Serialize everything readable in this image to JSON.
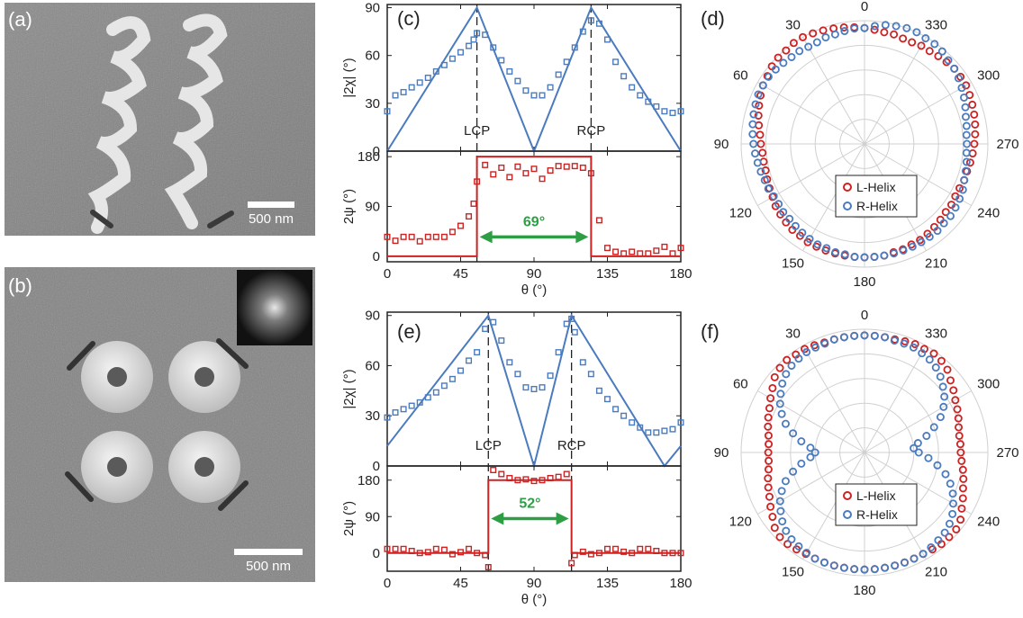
{
  "panels": {
    "a": {
      "label": "(a)",
      "scalebar": "500 nm"
    },
    "b": {
      "label": "(b)",
      "scalebar": "500 nm"
    },
    "c": {
      "label": "(c)"
    },
    "d": {
      "label": "(d)"
    },
    "e": {
      "label": "(e)"
    },
    "f": {
      "label": "(f)"
    }
  },
  "colors": {
    "blue": "#4a7bbf",
    "red": "#cc2222",
    "green": "#2e9e44",
    "grid": "#d0d0d0"
  },
  "chart_data": [
    {
      "id": "c-top",
      "type": "line",
      "xlabel": "",
      "ylabel": "|2χ| (°)",
      "xlim": [
        0,
        180
      ],
      "ylim": [
        0,
        92
      ],
      "xticks": [
        0,
        45,
        90,
        135,
        180
      ],
      "yticks": [
        0,
        30,
        60,
        90
      ],
      "yticklabels": [
        "0",
        "30",
        "60",
        "90"
      ],
      "markers": [
        {
          "x": 55,
          "label": "LCP"
        },
        {
          "x": 125,
          "label": "RCP"
        }
      ],
      "series": [
        {
          "style": "line",
          "color": "#4a7bbf",
          "x": [
            0,
            55,
            90,
            125,
            180
          ],
          "y": [
            0,
            90,
            0,
            90,
            0
          ]
        },
        {
          "style": "square",
          "color": "#4a7bbf",
          "x": [
            0,
            5,
            10,
            15,
            20,
            25,
            30,
            35,
            40,
            45,
            50,
            53,
            55,
            60,
            65,
            70,
            75,
            80,
            85,
            90,
            95,
            100,
            105,
            110,
            115,
            120,
            125,
            130,
            135,
            140,
            145,
            150,
            155,
            160,
            165,
            170,
            175,
            180
          ],
          "y": [
            25,
            35,
            37,
            40,
            43,
            46,
            50,
            54,
            58,
            62,
            66,
            70,
            74,
            73,
            65,
            57,
            50,
            44,
            38,
            35,
            35,
            40,
            48,
            56,
            65,
            75,
            82,
            80,
            70,
            56,
            47,
            40,
            35,
            31,
            28,
            25,
            24,
            25
          ]
        }
      ]
    },
    {
      "id": "c-bottom",
      "type": "line",
      "xlabel": "θ (°)",
      "ylabel": "2ψ (°)",
      "xlim": [
        0,
        180
      ],
      "ylim": [
        -10,
        190
      ],
      "xticks": [
        0,
        45,
        90,
        135,
        180
      ],
      "yticks": [
        0,
        90,
        180
      ],
      "xticklabels": [
        "0",
        "45",
        "90",
        "135",
        "180"
      ],
      "yticklabels": [
        "0",
        "90",
        "180"
      ],
      "annotation": {
        "text": "69°",
        "x1": 55,
        "x2": 125,
        "y": 35
      },
      "series": [
        {
          "style": "step",
          "color": "#cc2222",
          "x": [
            0,
            55,
            55,
            125,
            125,
            180
          ],
          "y": [
            0,
            0,
            180,
            180,
            0,
            0
          ]
        },
        {
          "style": "square",
          "color": "#cc2222",
          "x": [
            0,
            5,
            10,
            15,
            20,
            25,
            30,
            35,
            40,
            45,
            50,
            53,
            55,
            60,
            65,
            70,
            75,
            80,
            85,
            90,
            95,
            100,
            105,
            110,
            115,
            120,
            125,
            130,
            135,
            140,
            145,
            150,
            155,
            160,
            165,
            170,
            175,
            180
          ],
          "y": [
            35,
            28,
            35,
            35,
            27,
            35,
            35,
            35,
            44,
            55,
            72,
            95,
            135,
            165,
            148,
            160,
            143,
            162,
            150,
            158,
            140,
            155,
            163,
            162,
            163,
            160,
            150,
            65,
            15,
            8,
            5,
            8,
            5,
            5,
            10,
            17,
            5,
            15
          ]
        }
      ]
    },
    {
      "id": "e-top",
      "type": "line",
      "xlabel": "",
      "ylabel": "|2χ| (°)",
      "xlim": [
        0,
        180
      ],
      "ylim": [
        0,
        92
      ],
      "xticks": [
        0,
        45,
        90,
        135,
        180
      ],
      "yticks": [
        0,
        30,
        60,
        90
      ],
      "yticklabels": [
        "0",
        "30",
        "60",
        "90"
      ],
      "markers": [
        {
          "x": 62,
          "label": "LCP"
        },
        {
          "x": 113,
          "label": "RCP"
        }
      ],
      "series": [
        {
          "style": "line",
          "color": "#4a7bbf",
          "x": [
            0,
            62,
            90,
            113,
            170,
            180
          ],
          "y": [
            12,
            90,
            0,
            90,
            0,
            12
          ]
        },
        {
          "style": "square",
          "color": "#4a7bbf",
          "x": [
            0,
            5,
            10,
            15,
            20,
            25,
            30,
            35,
            40,
            45,
            50,
            55,
            60,
            65,
            70,
            75,
            80,
            85,
            90,
            95,
            100,
            105,
            110,
            113,
            115,
            120,
            125,
            130,
            135,
            140,
            145,
            150,
            155,
            160,
            165,
            170,
            175,
            180
          ],
          "y": [
            29,
            32,
            34,
            36,
            38,
            41,
            44,
            48,
            52,
            57,
            63,
            68,
            82,
            86,
            75,
            62,
            55,
            47,
            46,
            47,
            54,
            68,
            85,
            88,
            80,
            62,
            55,
            45,
            40,
            34,
            30,
            26,
            23,
            20,
            20,
            21,
            22,
            26
          ]
        }
      ]
    },
    {
      "id": "e-bottom",
      "type": "line",
      "xlabel": "θ (°)",
      "ylabel": "2ψ (°)",
      "xlim": [
        0,
        180
      ],
      "ylim": [
        -45,
        215
      ],
      "xticks": [
        0,
        45,
        90,
        135,
        180
      ],
      "yticks": [
        0,
        90,
        180
      ],
      "xticklabels": [
        "0",
        "45",
        "90",
        "135",
        "180"
      ],
      "yticklabels": [
        "0",
        "90",
        "180"
      ],
      "annotation": {
        "text": "52°",
        "x1": 62,
        "x2": 113,
        "y": 85
      },
      "series": [
        {
          "style": "step",
          "color": "#cc2222",
          "x": [
            0,
            62,
            62,
            113,
            113,
            180
          ],
          "y": [
            0,
            0,
            180,
            180,
            0,
            0
          ]
        },
        {
          "style": "square",
          "color": "#cc2222",
          "x": [
            0,
            5,
            10,
            15,
            20,
            25,
            30,
            35,
            40,
            45,
            50,
            55,
            60,
            62,
            65,
            70,
            75,
            80,
            85,
            90,
            95,
            100,
            105,
            110,
            113,
            115,
            120,
            125,
            130,
            135,
            140,
            145,
            150,
            155,
            160,
            165,
            170,
            175,
            180
          ],
          "y": [
            10,
            10,
            10,
            5,
            0,
            2,
            10,
            8,
            -3,
            2,
            10,
            0,
            -5,
            -35,
            205,
            195,
            185,
            180,
            182,
            178,
            180,
            185,
            188,
            195,
            -25,
            -5,
            3,
            -3,
            0,
            10,
            10,
            3,
            0,
            10,
            10,
            5,
            0,
            0,
            0
          ]
        }
      ]
    },
    {
      "id": "d",
      "type": "polar",
      "angle_labels": [
        {
          "deg": 0,
          "text": "0"
        },
        {
          "deg": 30,
          "text": "30"
        },
        {
          "deg": 60,
          "text": "60"
        },
        {
          "deg": 90,
          "text": "90"
        },
        {
          "deg": 120,
          "text": "120"
        },
        {
          "deg": 150,
          "text": "150"
        },
        {
          "deg": 180,
          "text": "180"
        },
        {
          "deg": 210,
          "text": "210"
        },
        {
          "deg": 240,
          "text": "240"
        },
        {
          "deg": 270,
          "text": "270"
        },
        {
          "deg": 300,
          "text": "300"
        },
        {
          "deg": 330,
          "text": "330"
        }
      ],
      "angle_step": 5,
      "series": [
        {
          "name": "L-Helix",
          "color": "#cc2222",
          "r": [
            0.94,
            0.95,
            0.96,
            0.97,
            0.98,
            0.99,
            1.0,
            1.0,
            0.99,
            0.99,
            0.98,
            0.96,
            0.95,
            0.93,
            0.91,
            0.89,
            0.87,
            0.85,
            0.84,
            0.83,
            0.83,
            0.83,
            0.84,
            0.85,
            0.86,
            0.88,
            0.89,
            0.9,
            0.91,
            0.91,
            0.92,
            0.92,
            0.92,
            0.92,
            0.92,
            0.92,
            0.92,
            0.92,
            0.92,
            0.91,
            0.91,
            0.9,
            0.9,
            0.89,
            0.88,
            0.87,
            0.86,
            0.86,
            0.85,
            0.85,
            0.86,
            0.86,
            0.87,
            0.88,
            0.89,
            0.9,
            0.91,
            0.92,
            0.93,
            0.94,
            0.95,
            0.95,
            0.95,
            0.94,
            0.93,
            0.92,
            0.92,
            0.91,
            0.91,
            0.92,
            0.92,
            0.93
          ]
        },
        {
          "name": "R-Helix",
          "color": "#4a7bbf",
          "r": [
            0.94,
            0.94,
            0.93,
            0.92,
            0.92,
            0.91,
            0.91,
            0.92,
            0.92,
            0.93,
            0.94,
            0.95,
            0.95,
            0.95,
            0.94,
            0.93,
            0.92,
            0.91,
            0.9,
            0.89,
            0.88,
            0.87,
            0.86,
            0.86,
            0.85,
            0.85,
            0.86,
            0.86,
            0.87,
            0.88,
            0.89,
            0.9,
            0.9,
            0.91,
            0.91,
            0.92,
            0.92,
            0.92,
            0.92,
            0.92,
            0.92,
            0.92,
            0.92,
            0.92,
            0.92,
            0.91,
            0.91,
            0.9,
            0.89,
            0.88,
            0.86,
            0.85,
            0.84,
            0.83,
            0.83,
            0.83,
            0.84,
            0.85,
            0.87,
            0.89,
            0.91,
            0.93,
            0.95,
            0.96,
            0.98,
            0.99,
            0.99,
            1.0,
            1.0,
            0.99,
            0.98,
            0.96
          ]
        }
      ],
      "legend": [
        "L-Helix",
        "R-Helix"
      ]
    },
    {
      "id": "f",
      "type": "polar",
      "angle_labels": [
        {
          "deg": 0,
          "text": "0"
        },
        {
          "deg": 30,
          "text": "30"
        },
        {
          "deg": 60,
          "text": "60"
        },
        {
          "deg": 90,
          "text": "90"
        },
        {
          "deg": 120,
          "text": "120"
        },
        {
          "deg": 150,
          "text": "150"
        },
        {
          "deg": 180,
          "text": "180"
        },
        {
          "deg": 210,
          "text": "210"
        },
        {
          "deg": 240,
          "text": "240"
        },
        {
          "deg": 270,
          "text": "270"
        },
        {
          "deg": 300,
          "text": "300"
        },
        {
          "deg": 330,
          "text": "330"
        }
      ],
      "angle_step": 5,
      "series": [
        {
          "name": "L-Helix",
          "color": "#cc2222",
          "r": [
            0.95,
            0.95,
            0.95,
            0.95,
            0.95,
            0.96,
            0.97,
            0.97,
            0.98,
            0.97,
            0.95,
            0.91,
            0.88,
            0.85,
            0.83,
            0.81,
            0.79,
            0.78,
            0.78,
            0.78,
            0.79,
            0.81,
            0.83,
            0.85,
            0.88,
            0.91,
            0.95,
            0.97,
            0.97,
            0.96,
            0.95,
            0.95,
            0.95,
            0.95,
            0.95,
            0.95,
            0.95,
            0.95,
            0.95,
            0.95,
            0.95,
            0.95,
            0.95,
            0.96,
            0.97,
            0.97,
            0.97,
            0.95,
            0.91,
            0.88,
            0.85,
            0.83,
            0.81,
            0.79,
            0.78,
            0.78,
            0.78,
            0.79,
            0.81,
            0.83,
            0.85,
            0.88,
            0.91,
            0.95,
            0.97,
            0.98,
            0.97,
            0.97,
            0.96,
            0.95,
            0.95,
            0.95
          ]
        },
        {
          "name": "R-Helix",
          "color": "#4a7bbf",
          "r": [
            0.95,
            0.95,
            0.95,
            0.95,
            0.94,
            0.94,
            0.94,
            0.93,
            0.92,
            0.9,
            0.87,
            0.83,
            0.79,
            0.74,
            0.68,
            0.6,
            0.52,
            0.44,
            0.4,
            0.44,
            0.52,
            0.6,
            0.68,
            0.74,
            0.79,
            0.83,
            0.87,
            0.9,
            0.92,
            0.93,
            0.94,
            0.95,
            0.95,
            0.95,
            0.95,
            0.95,
            0.95,
            0.95,
            0.95,
            0.95,
            0.95,
            0.95,
            0.95,
            0.94,
            0.93,
            0.92,
            0.9,
            0.87,
            0.83,
            0.79,
            0.74,
            0.68,
            0.6,
            0.52,
            0.44,
            0.4,
            0.44,
            0.52,
            0.6,
            0.68,
            0.74,
            0.79,
            0.83,
            0.87,
            0.9,
            0.92,
            0.93,
            0.94,
            0.94,
            0.94,
            0.95,
            0.95
          ]
        }
      ],
      "legend": [
        "L-Helix",
        "R-Helix"
      ]
    }
  ]
}
